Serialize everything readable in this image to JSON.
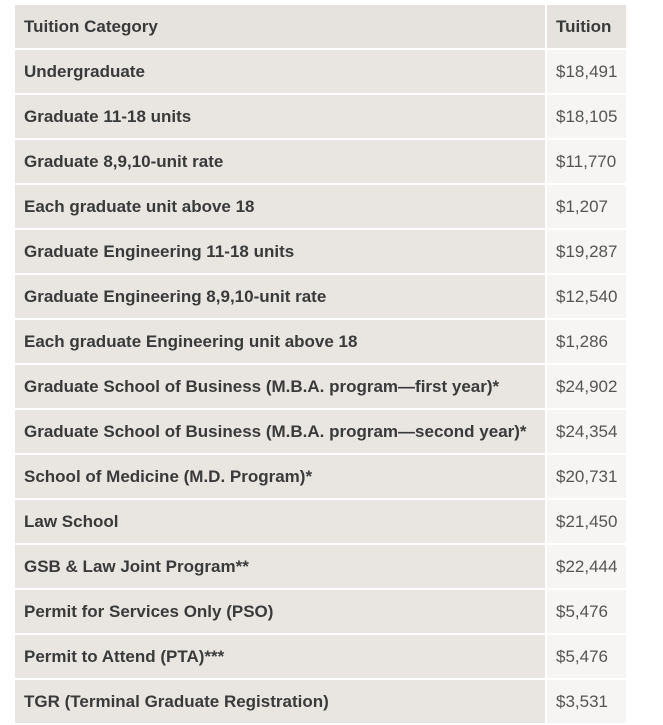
{
  "table": {
    "headers": [
      "Tuition Category",
      "Tuition"
    ],
    "rows": [
      {
        "category": "Undergraduate",
        "tuition": "$18,491"
      },
      {
        "category": "Graduate 11-18 units",
        "tuition": "$18,105"
      },
      {
        "category": "Graduate 8,9,10-unit rate",
        "tuition": "$11,770"
      },
      {
        "category": "Each graduate unit above 18",
        "tuition": "$1,207"
      },
      {
        "category": "Graduate Engineering 11-18 units",
        "tuition": "$19,287"
      },
      {
        "category": "Graduate Engineering 8,9,10-unit rate",
        "tuition": "$12,540"
      },
      {
        "category": "Each graduate Engineering unit above 18",
        "tuition": "$1,286"
      },
      {
        "category": "Graduate School of Business (M.B.A. program—first year)*",
        "tuition": "$24,902"
      },
      {
        "category": "Graduate School of Business (M.B.A. program—second year)*",
        "tuition": "$24,354"
      },
      {
        "category": "School of Medicine (M.D. Program)*",
        "tuition": "$20,731"
      },
      {
        "category": "Law School",
        "tuition": "$21,450"
      },
      {
        "category": "GSB & Law Joint Program**",
        "tuition": "$22,444"
      },
      {
        "category": "Permit for Services Only (PSO)",
        "tuition": "$5,476"
      },
      {
        "category": "Permit to Attend (PTA)***",
        "tuition": "$5,476"
      },
      {
        "category": "TGR (Terminal Graduate Registration)",
        "tuition": "$3,531"
      }
    ]
  }
}
